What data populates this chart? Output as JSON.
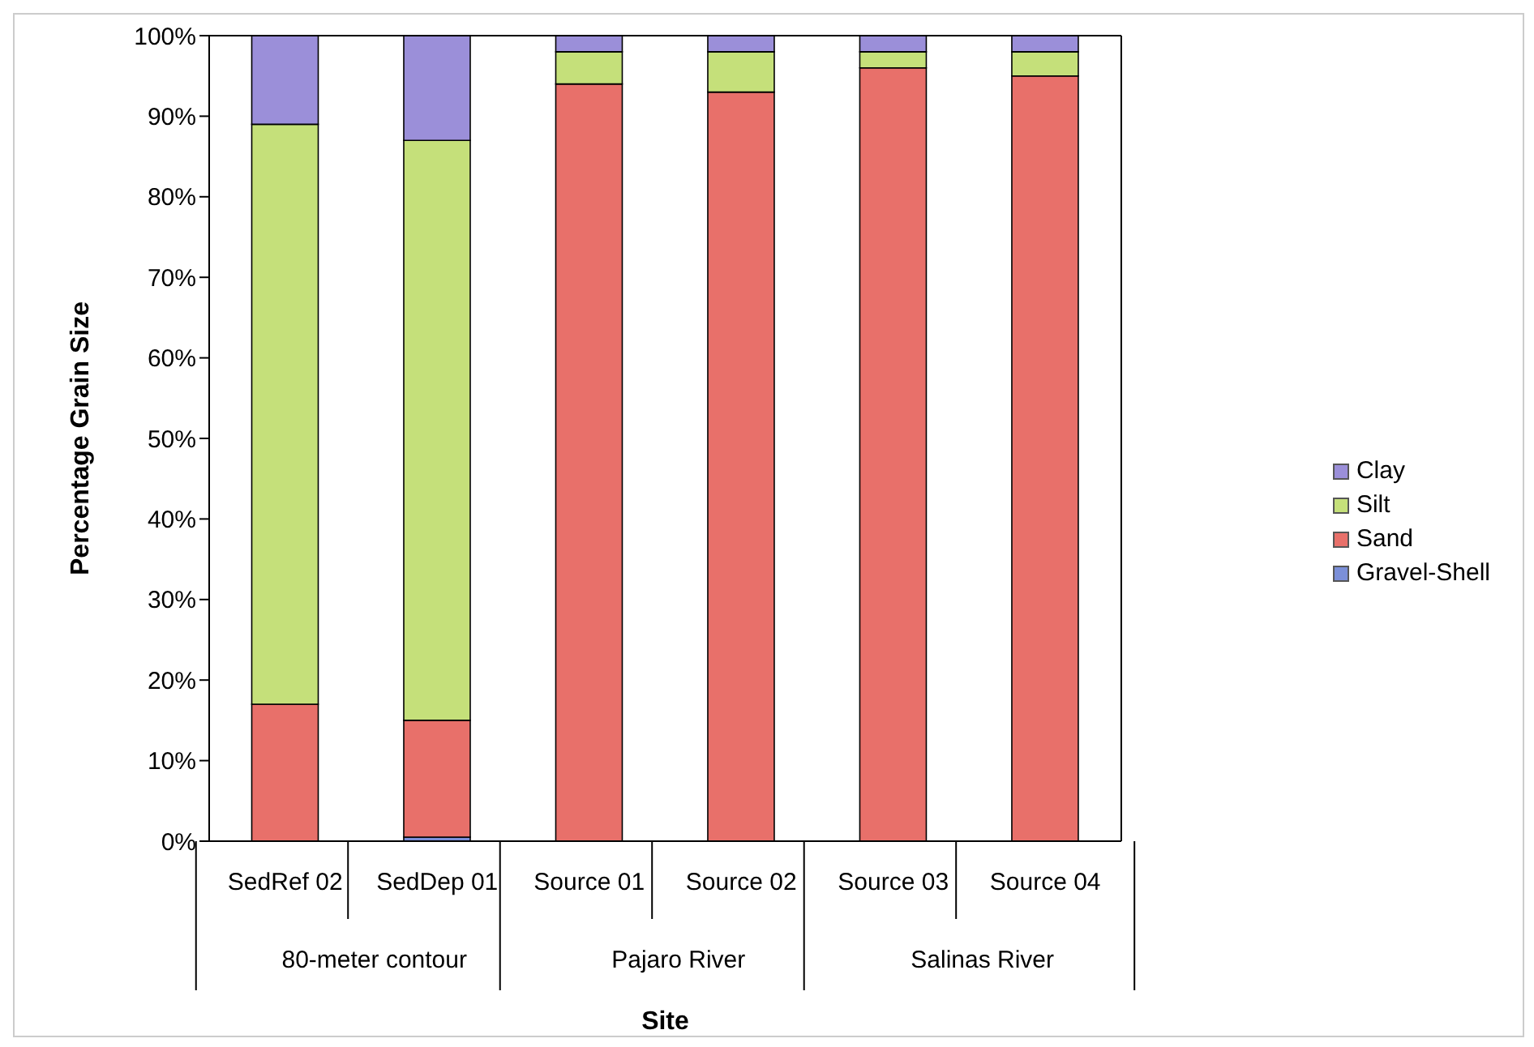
{
  "chart_data": {
    "type": "bar",
    "stacked": true,
    "xlabel": "Site",
    "ylabel": "Percentage Grain Size",
    "categories": [
      "SedRef 02",
      "SedDep 01",
      "Source 01",
      "Source 02",
      "Source 03",
      "Source 04"
    ],
    "series": [
      {
        "name": "Gravel-Shell",
        "color": "#7b8fd8",
        "values": [
          0,
          0.5,
          0,
          0,
          0,
          0
        ]
      },
      {
        "name": "Sand",
        "color": "#e8706a",
        "values": [
          17,
          14.5,
          94,
          93,
          96,
          95
        ]
      },
      {
        "name": "Silt",
        "color": "#c5e07a",
        "values": [
          72,
          72,
          4,
          5,
          2,
          3
        ]
      },
      {
        "name": "Clay",
        "color": "#9b8fd9",
        "values": [
          11,
          13,
          2,
          2,
          2,
          2
        ]
      }
    ],
    "ylim": [
      0,
      100
    ],
    "yticks": [
      {
        "value": 0,
        "label": "0%"
      },
      {
        "value": 10,
        "label": "10%"
      },
      {
        "value": 20,
        "label": "20%"
      },
      {
        "value": 30,
        "label": "30%"
      },
      {
        "value": 40,
        "label": "40%"
      },
      {
        "value": 50,
        "label": "50%"
      },
      {
        "value": 60,
        "label": "60%"
      },
      {
        "value": 70,
        "label": "70%"
      },
      {
        "value": 80,
        "label": "80%"
      },
      {
        "value": 90,
        "label": "90%"
      },
      {
        "value": 100,
        "label": "100%"
      }
    ],
    "annotations": [
      "80-meter contour",
      "Pajaro River",
      "Salinas River"
    ],
    "legend": "right",
    "grid": false
  }
}
